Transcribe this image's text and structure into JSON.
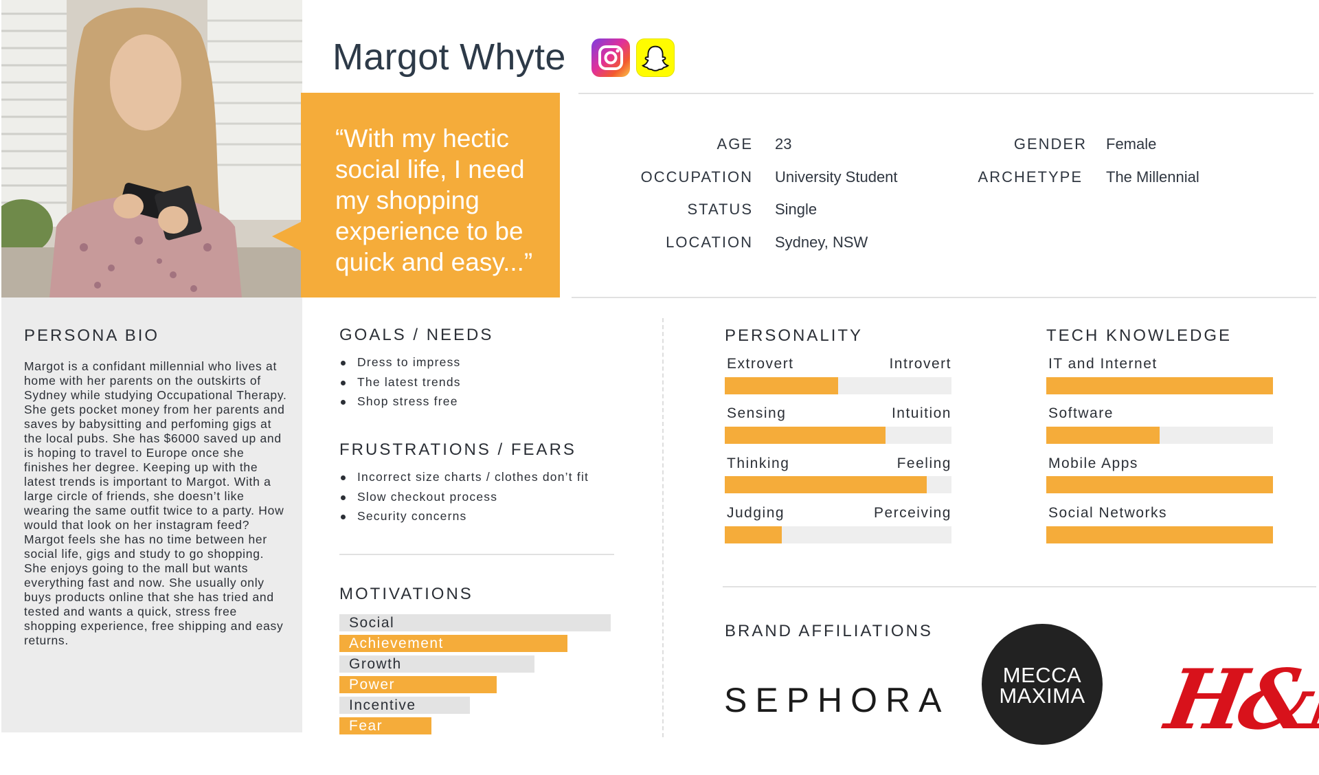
{
  "persona": {
    "name": "Margot Whyte",
    "quote": "“With my hectic social life, I need my shopping experience to be quick and easy...”"
  },
  "social_icons": [
    "instagram-icon",
    "snapchat-icon"
  ],
  "demographics": {
    "age_label": "AGE",
    "age": "23",
    "occupation_label": "OCCUPATION",
    "occupation": "University Student",
    "status_label": "STATUS",
    "status": "Single",
    "location_label": "LOCATION",
    "location": "Sydney, NSW",
    "gender_label": "GENDER",
    "gender": "Female",
    "archetype_label": "ARCHETYPE",
    "archetype": "The Millennial"
  },
  "bio": {
    "title": "PERSONA BIO",
    "text": "Margot is a confidant millennial who lives at home with her parents on the outskirts of Sydney while studying Occupational Therapy. She gets pocket money from her parents and saves by babysitting and perfoming gigs at the local pubs. She has $6000 saved up and is hoping to travel to Europe once she finishes her degree. Keeping up with the latest trends is important to Margot. With a large circle of friends, she doesn’t like wearing the same outfit twice to a party. How would that look on her instagram feed? Margot feels she has no time between her social life, gigs and study to go shopping. She enjoys going to the mall but wants everything fast and now. She usually only buys products online that she has tried and tested and wants a quick, stress free shopping experience, free shipping and easy returns."
  },
  "goals": {
    "title": "GOALS / NEEDS",
    "items": [
      "Dress to impress",
      "The latest trends",
      "Shop stress free"
    ]
  },
  "frustrations": {
    "title": "FRUSTRATIONS / FEARS",
    "items": [
      "Incorrect size charts / clothes don’t fit",
      "Slow checkout process",
      "Security concerns"
    ]
  },
  "motivations": {
    "title": "MOTIVATIONS",
    "items": [
      {
        "label": "Social",
        "value": 1.0,
        "color": "#e3e3e3",
        "text_color": "#2b2f36"
      },
      {
        "label": "Achievement",
        "value": 0.84,
        "color": "#f5ac3a",
        "text_color": "#ffffff"
      },
      {
        "label": "Growth",
        "value": 0.72,
        "color": "#e3e3e3",
        "text_color": "#2b2f36"
      },
      {
        "label": "Power",
        "value": 0.58,
        "color": "#f5ac3a",
        "text_color": "#ffffff"
      },
      {
        "label": "Incentive",
        "value": 0.48,
        "color": "#e3e3e3",
        "text_color": "#2b2f36"
      },
      {
        "label": "Fear",
        "value": 0.34,
        "color": "#f5ac3a",
        "text_color": "#ffffff"
      }
    ]
  },
  "personality": {
    "title": "PERSONALITY",
    "scales": [
      {
        "left": "Extrovert",
        "right": "Introvert",
        "value": 0.5
      },
      {
        "left": "Sensing",
        "right": "Intuition",
        "value": 0.71
      },
      {
        "left": "Thinking",
        "right": "Feeling",
        "value": 0.89
      },
      {
        "left": "Judging",
        "right": "Perceiving",
        "value": 0.25
      }
    ]
  },
  "tech": {
    "title": "TECH KNOWLEDGE",
    "items": [
      {
        "label": "IT and Internet",
        "value": 1.0
      },
      {
        "label": "Software",
        "value": 0.5
      },
      {
        "label": "Mobile Apps",
        "value": 1.0
      },
      {
        "label": "Social Networks",
        "value": 1.0
      }
    ]
  },
  "brands": {
    "title": "BRAND AFFILIATIONS",
    "sephora": "SEPHORA",
    "mecca_line1": "MECCA",
    "mecca_line2": "MAXIMA",
    "hm": "H&M"
  },
  "colors": {
    "accent": "#f5ac3a",
    "track": "#eeeeee",
    "text": "#2b2f36",
    "panel": "#ececec"
  }
}
